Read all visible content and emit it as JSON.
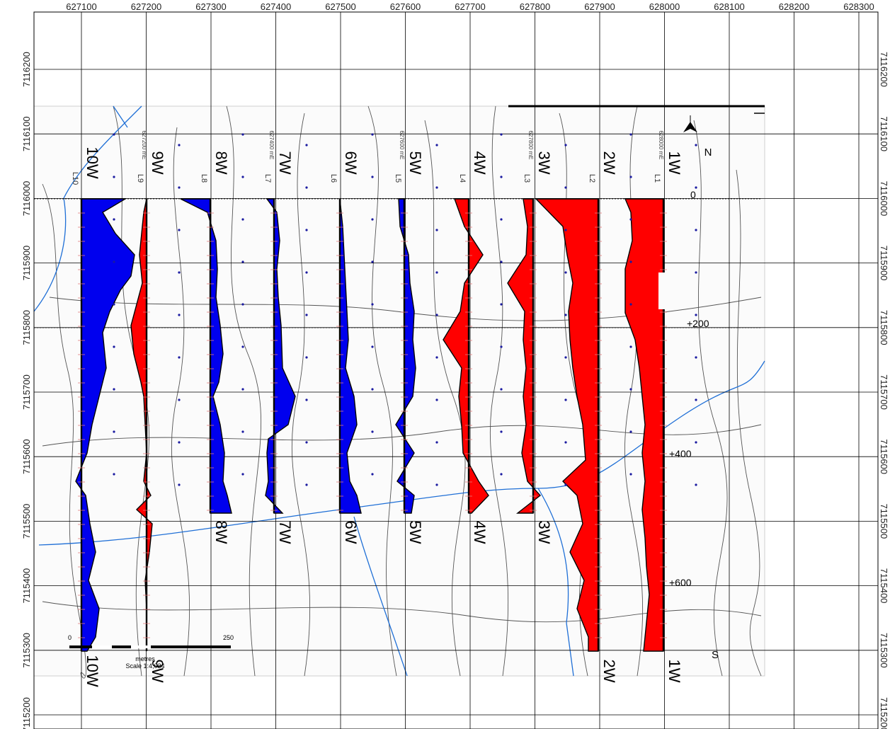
{
  "map": {
    "x_ticks": [
      "627100",
      "627200",
      "627300",
      "627400",
      "627500",
      "627600",
      "627700",
      "627800",
      "627900",
      "628000",
      "628100",
      "628200",
      "628300"
    ],
    "y_ticks": [
      "7116200",
      "7116100",
      "7116000",
      "7115900",
      "7115800",
      "7115700",
      "7115600",
      "7115500",
      "7115400",
      "7115300",
      "7115200"
    ],
    "north_label": "N",
    "south_label": "S",
    "chainage_labels": [
      "0",
      "+200",
      "+400",
      "+600"
    ],
    "scale_bar": {
      "start": "0",
      "end": "250",
      "unit": "metres",
      "scale": "Scale 1:4,034"
    },
    "colors": {
      "positive": "#0000ee",
      "negative": "#ff0000",
      "contour": "#555555",
      "stream": "#1f6fd6",
      "grid": "#000000"
    },
    "lines": [
      {
        "id": "10W",
        "top_label": "10W",
        "bottom_label": "10W",
        "tag": "L10",
        "station_label": ""
      },
      {
        "id": "9W",
        "top_label": "9W",
        "bottom_label": "9W",
        "tag": "L9",
        "station_label": "627200 mE"
      },
      {
        "id": "8W",
        "top_label": "8W",
        "bottom_label": "8W",
        "tag": "L8",
        "station_label": ""
      },
      {
        "id": "7W",
        "top_label": "7W",
        "bottom_label": "7W",
        "tag": "L7",
        "station_label": "627400 mE"
      },
      {
        "id": "6W",
        "top_label": "6W",
        "bottom_label": "6W",
        "tag": "L6",
        "station_label": ""
      },
      {
        "id": "5W",
        "top_label": "5W",
        "bottom_label": "5W",
        "tag": "L5",
        "station_label": "627600 mE"
      },
      {
        "id": "4W",
        "top_label": "4W",
        "bottom_label": "4W",
        "tag": "L4",
        "station_label": ""
      },
      {
        "id": "3W",
        "top_label": "3W",
        "bottom_label": "3W",
        "tag": "L3",
        "station_label": "627800 mE"
      },
      {
        "id": "2W",
        "top_label": "2W",
        "bottom_label": "2W",
        "tag": "L2",
        "station_label": ""
      },
      {
        "id": "1W",
        "top_label": "1W",
        "bottom_label": "1W",
        "tag": "L1",
        "station_label": "628000 mE"
      }
    ]
  }
}
